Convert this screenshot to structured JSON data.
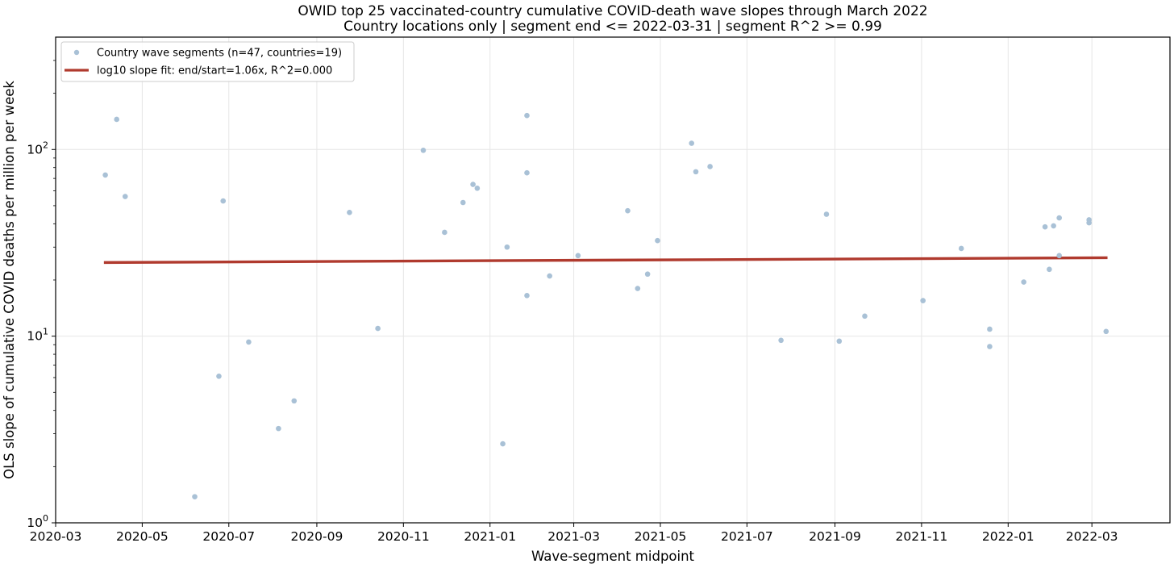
{
  "chart_data": {
    "type": "scatter",
    "title": [
      "OWID top 25 vaccinated-country cumulative COVID-death wave slopes through March 2022",
      "Country locations only | segment end <= 2022-03-31 | segment R^2 >= 0.99"
    ],
    "xlabel": "Wave-segment midpoint",
    "ylabel": "OLS slope of cumulative COVID deaths per million per week",
    "x_axis": {
      "type": "date",
      "range": [
        "2020-03-01",
        "2022-04-25"
      ],
      "ticks": [
        "2020-03",
        "2020-05",
        "2020-07",
        "2020-09",
        "2020-11",
        "2021-01",
        "2021-03",
        "2021-05",
        "2021-07",
        "2021-09",
        "2021-11",
        "2022-01",
        "2022-03"
      ]
    },
    "y_axis": {
      "scale": "log",
      "range": [
        1,
        400
      ],
      "ticks": [
        {
          "value": 1,
          "base": "10",
          "exp": "0"
        },
        {
          "value": 10,
          "base": "10",
          "exp": "1"
        },
        {
          "value": 100,
          "base": "10",
          "exp": "2"
        }
      ]
    },
    "grid": true,
    "legend_position": "top-left",
    "colors": {
      "points": "#a9c1d6",
      "fit": "#b03a2e"
    },
    "series": [
      {
        "name": "Country wave segments (n=47, countries=19)",
        "kind": "scatter",
        "points": [
          {
            "x": "2020-04-05",
            "y": 73
          },
          {
            "x": "2020-04-13",
            "y": 145
          },
          {
            "x": "2020-04-19",
            "y": 56
          },
          {
            "x": "2020-06-07",
            "y": 1.38
          },
          {
            "x": "2020-06-24",
            "y": 6.1
          },
          {
            "x": "2020-06-27",
            "y": 53
          },
          {
            "x": "2020-07-15",
            "y": 9.3
          },
          {
            "x": "2020-08-05",
            "y": 3.2
          },
          {
            "x": "2020-08-16",
            "y": 4.5
          },
          {
            "x": "2020-09-24",
            "y": 46
          },
          {
            "x": "2020-10-14",
            "y": 11
          },
          {
            "x": "2020-11-15",
            "y": 99
          },
          {
            "x": "2020-11-30",
            "y": 36
          },
          {
            "x": "2020-12-13",
            "y": 52
          },
          {
            "x": "2020-12-20",
            "y": 65
          },
          {
            "x": "2020-12-23",
            "y": 62
          },
          {
            "x": "2021-01-10",
            "y": 2.65
          },
          {
            "x": "2021-01-13",
            "y": 30
          },
          {
            "x": "2021-01-27",
            "y": 152
          },
          {
            "x": "2021-01-27",
            "y": 75
          },
          {
            "x": "2021-01-27",
            "y": 16.5
          },
          {
            "x": "2021-02-12",
            "y": 21
          },
          {
            "x": "2021-03-04",
            "y": 27
          },
          {
            "x": "2021-04-08",
            "y": 47
          },
          {
            "x": "2021-04-15",
            "y": 18
          },
          {
            "x": "2021-04-22",
            "y": 21.5
          },
          {
            "x": "2021-04-29",
            "y": 32.5
          },
          {
            "x": "2021-05-23",
            "y": 108
          },
          {
            "x": "2021-05-26",
            "y": 76
          },
          {
            "x": "2021-06-05",
            "y": 81
          },
          {
            "x": "2021-07-25",
            "y": 9.5
          },
          {
            "x": "2021-08-26",
            "y": 45
          },
          {
            "x": "2021-09-04",
            "y": 9.4
          },
          {
            "x": "2021-09-22",
            "y": 12.8
          },
          {
            "x": "2021-11-02",
            "y": 15.5
          },
          {
            "x": "2021-11-29",
            "y": 29.5
          },
          {
            "x": "2021-12-19",
            "y": 10.9
          },
          {
            "x": "2021-12-19",
            "y": 8.8
          },
          {
            "x": "2022-01-12",
            "y": 19.5
          },
          {
            "x": "2022-01-27",
            "y": 38.5
          },
          {
            "x": "2022-01-30",
            "y": 22.8
          },
          {
            "x": "2022-02-02",
            "y": 39
          },
          {
            "x": "2022-02-06",
            "y": 43
          },
          {
            "x": "2022-02-06",
            "y": 27
          },
          {
            "x": "2022-02-27",
            "y": 42
          },
          {
            "x": "2022-02-27",
            "y": 40.5
          },
          {
            "x": "2022-03-11",
            "y": 10.6
          }
        ]
      },
      {
        "name": "log10 slope fit: end/start=1.06x, R^2=0.000",
        "kind": "line",
        "points": [
          {
            "x": "2020-04-04",
            "y": 24.8
          },
          {
            "x": "2022-03-12",
            "y": 26.3
          }
        ]
      }
    ]
  }
}
